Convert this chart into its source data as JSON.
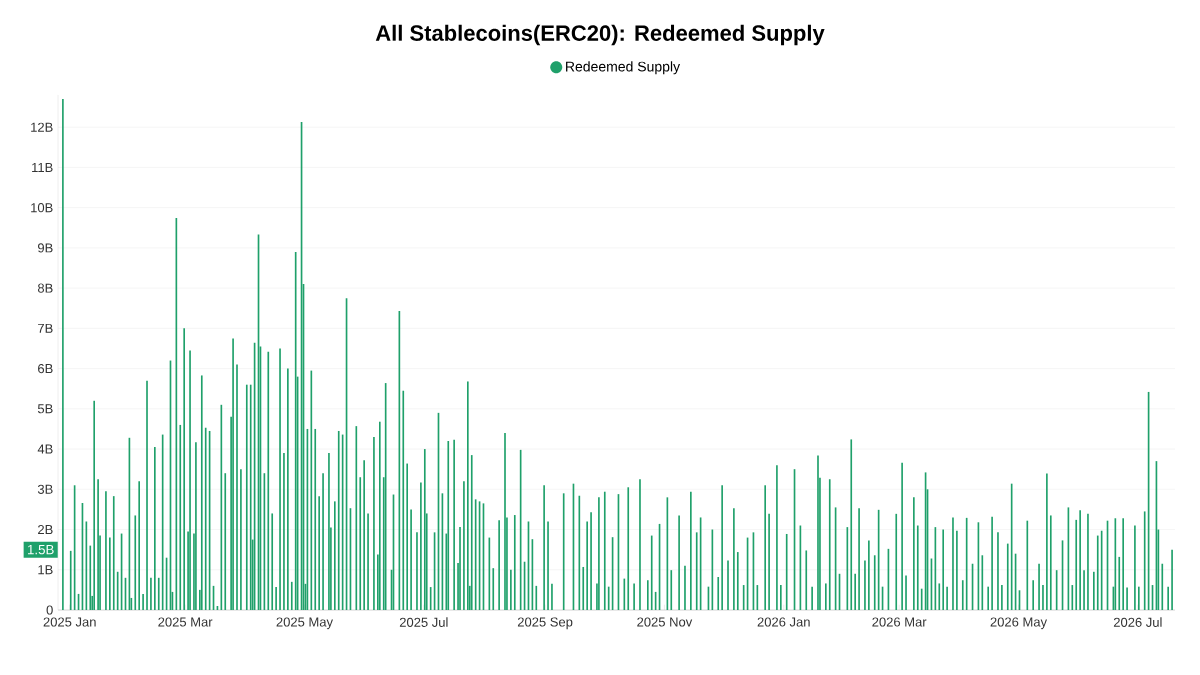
{
  "chart_data": {
    "type": "bar",
    "title": "All Stablecoins(ERC20): Redeemed Supply",
    "x": [
      "2024-12-28",
      "2025-01-01",
      "2025-01-03",
      "2025-01-05",
      "2025-01-07",
      "2025-01-09",
      "2025-01-11",
      "2025-01-12",
      "2025-01-13",
      "2025-01-15",
      "2025-01-16",
      "2025-01-19",
      "2025-01-21",
      "2025-01-23",
      "2025-01-25",
      "2025-01-27",
      "2025-01-29",
      "2025-01-31",
      "2025-02-01",
      "2025-02-03",
      "2025-02-05",
      "2025-02-07",
      "2025-02-09",
      "2025-02-11",
      "2025-02-13",
      "2025-02-15",
      "2025-02-17",
      "2025-02-19",
      "2025-02-21",
      "2025-02-22",
      "2025-02-24",
      "2025-02-26",
      "2025-02-28",
      "2025-03-02",
      "2025-03-03",
      "2025-03-05",
      "2025-03-06",
      "2025-03-08",
      "2025-03-09",
      "2025-03-11",
      "2025-03-13",
      "2025-03-15",
      "2025-03-17",
      "2025-03-19",
      "2025-03-21",
      "2025-03-24",
      "2025-03-25",
      "2025-03-27",
      "2025-03-29",
      "2025-04-01",
      "2025-04-03",
      "2025-04-04",
      "2025-04-05",
      "2025-04-07",
      "2025-04-08",
      "2025-04-10",
      "2025-04-12",
      "2025-04-14",
      "2025-04-16",
      "2025-04-18",
      "2025-04-20",
      "2025-04-22",
      "2025-04-24",
      "2025-04-26",
      "2025-04-27",
      "2025-04-29",
      "2025-04-30",
      "2025-05-01",
      "2025-05-02",
      "2025-05-04",
      "2025-05-06",
      "2025-05-08",
      "2025-05-10",
      "2025-05-13",
      "2025-05-14",
      "2025-05-16",
      "2025-05-18",
      "2025-05-20",
      "2025-05-22",
      "2025-05-24",
      "2025-05-27",
      "2025-05-29",
      "2025-05-31",
      "2025-06-02",
      "2025-06-05",
      "2025-06-07",
      "2025-06-08",
      "2025-06-10",
      "2025-06-11",
      "2025-06-14",
      "2025-06-15",
      "2025-06-18",
      "2025-06-20",
      "2025-06-22",
      "2025-06-24",
      "2025-06-27",
      "2025-06-29",
      "2025-07-01",
      "2025-07-02",
      "2025-07-04",
      "2025-07-06",
      "2025-07-08",
      "2025-07-10",
      "2025-07-12",
      "2025-07-13",
      "2025-07-16",
      "2025-07-18",
      "2025-07-19",
      "2025-07-21",
      "2025-07-23",
      "2025-07-24",
      "2025-07-25",
      "2025-07-27",
      "2025-07-29",
      "2025-07-31",
      "2025-08-03",
      "2025-08-05",
      "2025-08-08",
      "2025-08-11",
      "2025-08-12",
      "2025-08-14",
      "2025-08-16",
      "2025-08-19",
      "2025-08-21",
      "2025-08-23",
      "2025-08-25",
      "2025-08-27",
      "2025-08-31",
      "2025-09-02",
      "2025-09-04",
      "2025-09-10",
      "2025-09-15",
      "2025-09-18",
      "2025-09-20",
      "2025-09-22",
      "2025-09-24",
      "2025-09-27",
      "2025-09-28",
      "2025-10-01",
      "2025-10-03",
      "2025-10-05",
      "2025-10-08",
      "2025-10-11",
      "2025-10-13",
      "2025-10-16",
      "2025-10-19",
      "2025-10-23",
      "2025-10-25",
      "2025-10-27",
      "2025-10-29",
      "2025-11-02",
      "2025-11-04",
      "2025-11-08",
      "2025-11-11",
      "2025-11-14",
      "2025-11-17",
      "2025-11-19",
      "2025-11-23",
      "2025-11-25",
      "2025-11-28",
      "2025-11-30",
      "2025-12-03",
      "2025-12-06",
      "2025-12-08",
      "2025-12-11",
      "2025-12-13",
      "2025-12-16",
      "2025-12-18",
      "2025-12-22",
      "2025-12-24",
      "2025-12-28",
      "2025-12-30",
      "2026-01-02",
      "2026-01-06",
      "2026-01-09",
      "2026-01-12",
      "2026-01-15",
      "2026-01-18",
      "2026-01-19",
      "2026-01-22",
      "2026-01-24",
      "2026-01-27",
      "2026-01-29",
      "2026-02-02",
      "2026-02-04",
      "2026-02-06",
      "2026-02-08",
      "2026-02-11",
      "2026-02-13",
      "2026-02-16",
      "2026-02-18",
      "2026-02-20",
      "2026-02-23",
      "2026-02-27",
      "2026-03-02",
      "2026-03-04",
      "2026-03-08",
      "2026-03-10",
      "2026-03-12",
      "2026-03-14",
      "2026-03-15",
      "2026-03-17",
      "2026-03-19",
      "2026-03-21",
      "2026-03-23",
      "2026-03-25",
      "2026-03-28",
      "2026-03-30",
      "2026-04-02",
      "2026-04-04",
      "2026-04-07",
      "2026-04-10",
      "2026-04-12",
      "2026-04-15",
      "2026-04-17",
      "2026-04-20",
      "2026-04-22",
      "2026-04-25",
      "2026-04-27",
      "2026-04-29",
      "2026-05-01",
      "2026-05-05",
      "2026-05-08",
      "2026-05-11",
      "2026-05-13",
      "2026-05-15",
      "2026-05-17",
      "2026-05-20",
      "2026-05-23",
      "2026-05-26",
      "2026-05-28",
      "2026-05-30",
      "2026-06-01",
      "2026-06-03",
      "2026-06-05",
      "2026-06-08",
      "2026-06-10",
      "2026-06-12",
      "2026-06-15",
      "2026-06-18",
      "2026-06-19",
      "2026-06-21",
      "2026-06-23",
      "2026-06-25",
      "2026-06-29",
      "2026-07-01",
      "2026-07-04",
      "2026-07-06",
      "2026-07-08",
      "2026-07-10",
      "2026-07-11",
      "2026-07-13",
      "2026-07-16",
      "2026-07-18"
    ],
    "series": [
      {
        "name": "Redeemed Supply",
        "color": "#1fa06a",
        "values": [
          12.7,
          1.47,
          3.1,
          0.4,
          2.66,
          2.2,
          1.6,
          0.35,
          5.2,
          3.25,
          1.85,
          2.95,
          1.8,
          2.83,
          0.95,
          1.9,
          0.8,
          4.28,
          0.3,
          2.35,
          3.2,
          0.4,
          5.7,
          0.8,
          4.05,
          0.8,
          4.36,
          1.3,
          6.2,
          0.45,
          9.74,
          4.6,
          7.0,
          1.95,
          6.45,
          1.9,
          4.17,
          0.5,
          5.83,
          4.53,
          4.45,
          0.6,
          0.1,
          5.1,
          3.4,
          4.8,
          6.75,
          6.1,
          3.5,
          5.6,
          5.6,
          1.75,
          6.64,
          9.33,
          6.55,
          3.4,
          6.42,
          2.4,
          0.57,
          6.5,
          3.9,
          6.0,
          0.7,
          8.9,
          5.8,
          12.13,
          8.1,
          0.65,
          4.5,
          5.95,
          4.5,
          2.83,
          3.4,
          3.9,
          2.05,
          2.7,
          4.45,
          4.36,
          7.75,
          2.53,
          4.57,
          3.3,
          3.72,
          2.4,
          4.3,
          1.38,
          4.68,
          3.3,
          5.64,
          1.0,
          2.87,
          7.43,
          5.45,
          3.64,
          2.5,
          1.93,
          3.17,
          4.0,
          2.4,
          0.57,
          1.93,
          4.9,
          2.9,
          1.9,
          4.2,
          4.23,
          1.17,
          2.06,
          3.2,
          5.68,
          0.6,
          3.85,
          2.75,
          2.7,
          2.65,
          1.8,
          1.04,
          2.23,
          4.4,
          2.3,
          1.0,
          2.36,
          3.98,
          1.2,
          2.2,
          1.76,
          0.6,
          3.1,
          2.2,
          0.65,
          2.9,
          3.14,
          2.84,
          1.07,
          2.2,
          2.43,
          0.66,
          2.8,
          2.94,
          0.58,
          1.81,
          2.88,
          0.78,
          3.05,
          0.66,
          3.25,
          0.74,
          1.85,
          0.45,
          2.14,
          2.8,
          0.99,
          2.35,
          1.1,
          2.94,
          1.93,
          2.3,
          0.58,
          2.0,
          0.82,
          3.1,
          1.23,
          2.53,
          1.44,
          0.62,
          1.8,
          1.93,
          0.62,
          3.1,
          2.39,
          3.6,
          0.62,
          1.89,
          3.5,
          2.1,
          1.48,
          0.58,
          3.84,
          3.29,
          0.66,
          3.25,
          2.55,
          0.9,
          2.06,
          4.24,
          0.9,
          2.53,
          1.23,
          1.73,
          1.36,
          2.49,
          0.58,
          1.52,
          2.39,
          3.66,
          0.86,
          2.8,
          2.1,
          0.53,
          3.42,
          3.0,
          1.28,
          2.06,
          0.66,
          2.0,
          0.58,
          2.3,
          1.97,
          0.74,
          2.29,
          1.15,
          2.18,
          1.36,
          0.58,
          2.32,
          1.93,
          0.62,
          1.65,
          3.14,
          1.4,
          0.49,
          2.22,
          0.74,
          1.15,
          0.62,
          3.39,
          2.35,
          0.99,
          1.73,
          2.55,
          0.62,
          2.24,
          2.48,
          0.99,
          2.39,
          0.95,
          1.85,
          1.97,
          2.22,
          0.58,
          2.28,
          1.32,
          2.28,
          0.56,
          2.1,
          0.58,
          2.45,
          5.42,
          0.62,
          3.7,
          2.0,
          1.15,
          0.58,
          1.5
        ]
      }
    ],
    "xlim": [
      "2024-12-26",
      "2026-07-20"
    ],
    "xticks": [
      {
        "value": "2025-01-01",
        "label": "2025 Jan"
      },
      {
        "value": "2025-03-01",
        "label": "2025 Mar"
      },
      {
        "value": "2025-05-01",
        "label": "2025 May"
      },
      {
        "value": "2025-07-01",
        "label": "2025 Jul"
      },
      {
        "value": "2025-09-01",
        "label": "2025 Sep"
      },
      {
        "value": "2025-11-01",
        "label": "2025 Nov"
      },
      {
        "value": "2026-01-01",
        "label": "2026 Jan"
      },
      {
        "value": "2026-03-01",
        "label": "2026 Mar"
      },
      {
        "value": "2026-05-01",
        "label": "2026 May"
      },
      {
        "value": "2026-07-01",
        "label": "2026 Jul"
      }
    ],
    "ylim": [
      0,
      12.8
    ],
    "yticks": [
      0,
      {
        "value": 1,
        "label": "1B"
      },
      {
        "value": 2,
        "label": "2B"
      },
      {
        "value": 3,
        "label": "3B"
      },
      {
        "value": 4,
        "label": "4B"
      },
      {
        "value": 5,
        "label": "5B"
      },
      {
        "value": 6,
        "label": "6B"
      },
      {
        "value": 7,
        "label": "7B"
      },
      {
        "value": 8,
        "label": "8B"
      },
      {
        "value": 9,
        "label": "9B"
      },
      {
        "value": 10,
        "label": "10B"
      },
      {
        "value": 11,
        "label": "11B"
      },
      {
        "value": 12,
        "label": "12B"
      }
    ],
    "annotations": [
      {
        "text": "1.5B",
        "y": 1.5
      }
    ],
    "grid": "y",
    "legend": "top"
  }
}
